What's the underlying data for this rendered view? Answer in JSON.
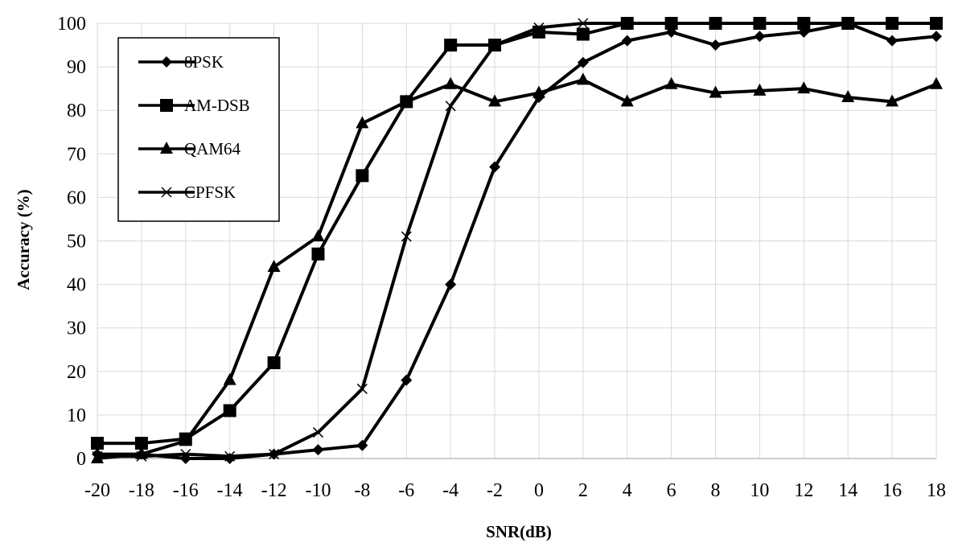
{
  "chart_data": {
    "type": "line",
    "title": "",
    "xlabel": "SNR(dB)",
    "ylabel": "Accuracy (%)",
    "x": [
      -20,
      -18,
      -16,
      -14,
      -12,
      -10,
      -8,
      -6,
      -4,
      -2,
      0,
      2,
      4,
      6,
      8,
      10,
      12,
      14,
      16,
      18
    ],
    "x_tick_labels": [
      "-20",
      "-18",
      "-16",
      "-14",
      "-12",
      "-10",
      "-8",
      "-6",
      "-4",
      "-2",
      "0",
      "2",
      "4",
      "6",
      "8",
      "10",
      "12",
      "14",
      "16",
      "18"
    ],
    "y_tick_labels": [
      "0",
      "10",
      "20",
      "30",
      "40",
      "50",
      "60",
      "70",
      "80",
      "90",
      "100"
    ],
    "ylim": [
      0,
      100
    ],
    "grid": true,
    "legend_position": "top-left",
    "series": [
      {
        "name": "8PSK",
        "marker": "diamond",
        "values": [
          1,
          1,
          0,
          0,
          1,
          2,
          3,
          18,
          40,
          67,
          83,
          91,
          96,
          98,
          95,
          97,
          98,
          100,
          96,
          97
        ]
      },
      {
        "name": "AM-DSB",
        "marker": "square",
        "values": [
          3.5,
          3.5,
          4.5,
          11,
          22,
          47,
          65,
          82,
          95,
          95,
          98,
          97.5,
          100,
          100,
          100,
          100,
          100,
          100,
          100,
          100
        ]
      },
      {
        "name": "QAM64",
        "marker": "triangle",
        "values": [
          0,
          1,
          4,
          18,
          44,
          51,
          77,
          82,
          86,
          82,
          84,
          87,
          82,
          86,
          84,
          84.5,
          85,
          83,
          82,
          86
        ]
      },
      {
        "name": "CPFSK",
        "marker": "x",
        "values": [
          0.5,
          0.5,
          1,
          0.5,
          1,
          6,
          16,
          51,
          81,
          95,
          99,
          100,
          100,
          100,
          100,
          100,
          100,
          100,
          100,
          100
        ]
      }
    ]
  }
}
